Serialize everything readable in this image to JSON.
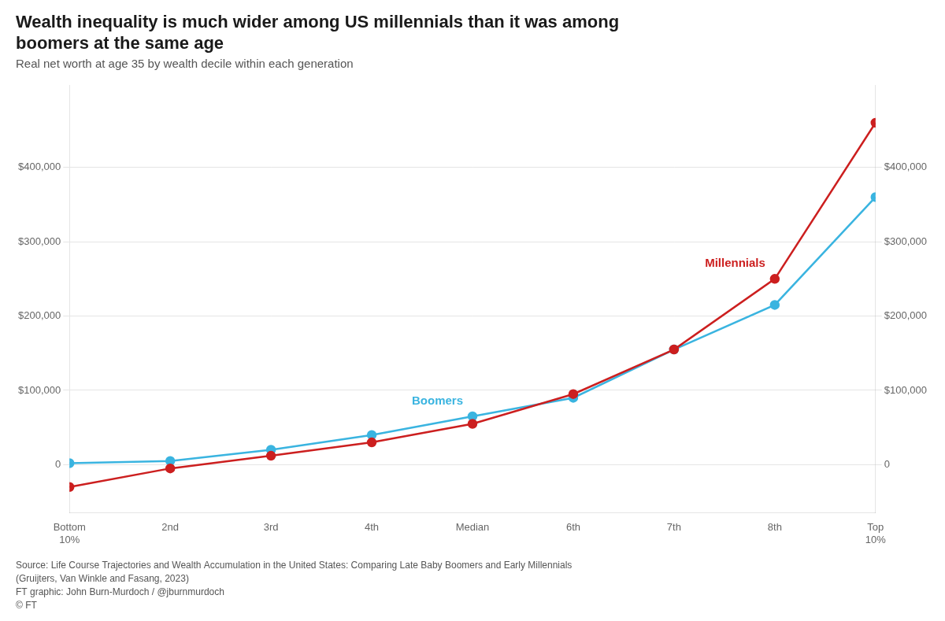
{
  "chart_data": {
    "type": "line",
    "title": [
      "Wealth inequality is much wider among US millennials than it was among",
      "boomers at the same age"
    ],
    "subtitle": "Real net worth at age 35 by wealth decile within each generation",
    "categories": [
      "Bottom\n10%",
      "2nd",
      "3rd",
      "4th",
      "Median",
      "6th",
      "7th",
      "8th",
      "Top\n10%"
    ],
    "series": [
      {
        "name": "Millennials",
        "color": "#cc1f1f",
        "values": [
          -30000,
          -5000,
          12000,
          30000,
          55000,
          95000,
          155000,
          250000,
          460000
        ]
      },
      {
        "name": "Boomers",
        "color": "#3ab4e0",
        "values": [
          2000,
          5000,
          20000,
          40000,
          65000,
          90000,
          155000,
          215000,
          360000
        ]
      }
    ],
    "marker": "circle",
    "ylim": [
      -65000,
      510000
    ],
    "yticks": [
      0,
      {
        "value": 100000,
        "label": "$100,000"
      },
      {
        "value": 200000,
        "label": "$200,000"
      },
      {
        "value": 300000,
        "label": "$300,000"
      },
      {
        "value": 400000,
        "label": "$400,000"
      }
    ],
    "y2lim": [
      -65000,
      510000
    ],
    "y2ticks": [
      0,
      {
        "value": 100000,
        "label": "$100,000"
      },
      {
        "value": 200000,
        "label": "$200,000"
      },
      {
        "value": 300000,
        "label": "$300,000"
      },
      {
        "value": 400000,
        "label": "$400,000"
      }
    ],
    "grid": true,
    "source": [
      "Source: Life Course Trajectories and Wealth Accumulation in the United States: Comparing Late Baby Boomers and Early Millennials",
      "(Gruijters, Van Winkle and Fasang, 2023)",
      "FT graphic: John Burn-Murdoch / @jburnmurdoch",
      "© FT"
    ]
  }
}
